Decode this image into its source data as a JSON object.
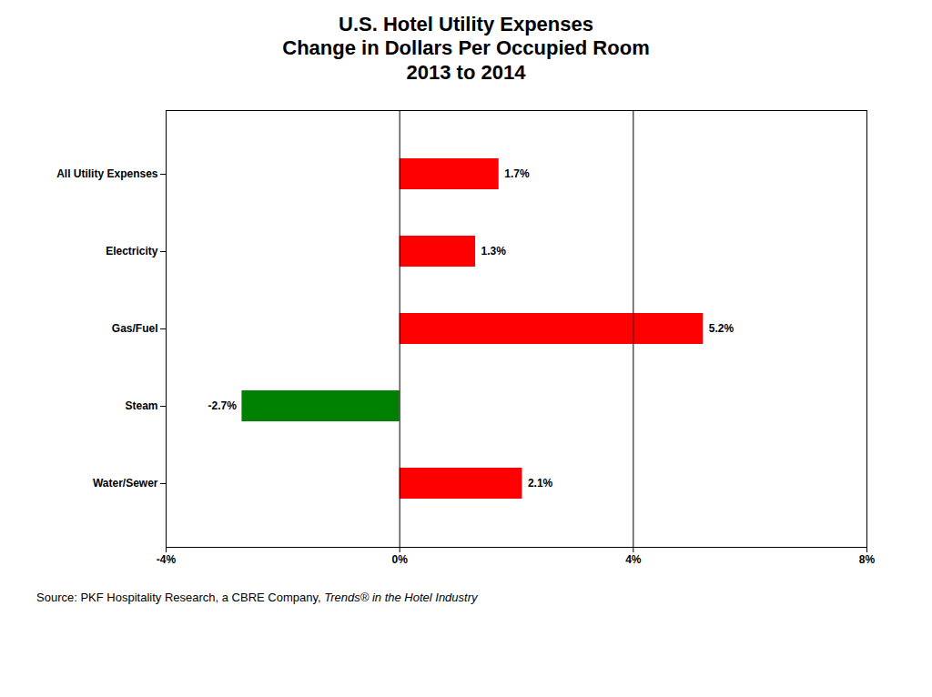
{
  "chart_data": {
    "type": "bar",
    "orientation": "horizontal",
    "title": "U.S. Hotel Utility Expenses\nChange in Dollars Per Occupied Room\n2013 to 2014",
    "categories": [
      "Water/Sewer",
      "Steam",
      "Gas/Fuel",
      "Electricity",
      "All Utility Expenses"
    ],
    "values": [
      2.1,
      -2.7,
      5.2,
      1.3,
      1.7
    ],
    "value_labels": [
      "2.1%",
      "-2.7%",
      "5.2%",
      "1.3%",
      "1.7%"
    ],
    "colors": [
      "#ff0000",
      "#008000",
      "#ff0000",
      "#ff0000",
      "#ff0000"
    ],
    "data_labels": true,
    "xlim": [
      -4,
      8
    ],
    "xticks": [
      {
        "value": -4,
        "label": "-4%"
      },
      {
        "value": 0,
        "label": "0%"
      },
      {
        "value": 4,
        "label": "4%"
      },
      {
        "value": 8,
        "label": "8%"
      }
    ],
    "vlines": [
      0,
      4
    ],
    "grid": false,
    "annotations": [
      "Source: PKF Hospitality Research, a CBRE Company,",
      "Trends® in the Hotel Industry"
    ]
  }
}
